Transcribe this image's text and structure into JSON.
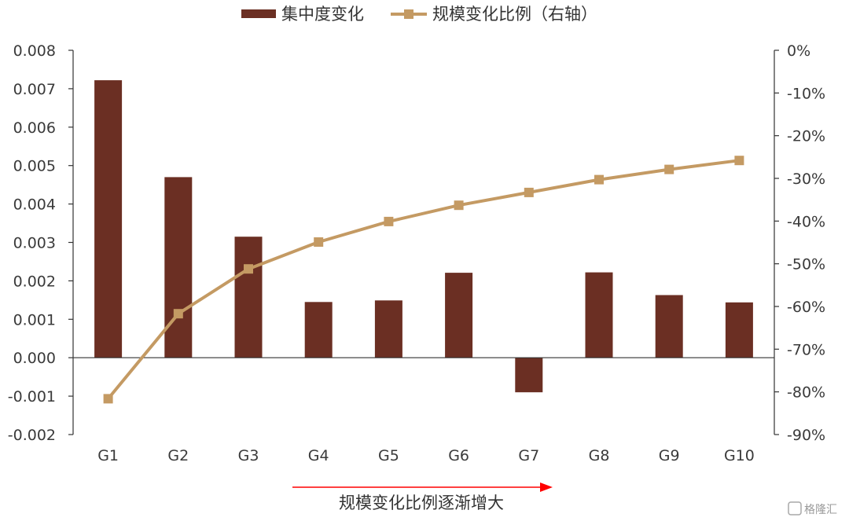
{
  "chart_data": {
    "type": "bar+line",
    "categories": [
      "G1",
      "G2",
      "G3",
      "G4",
      "G5",
      "G6",
      "G7",
      "G8",
      "G9",
      "G10"
    ],
    "series": [
      {
        "name": "集中度变化",
        "type": "bar",
        "axis": "left",
        "color": "#6b2f23",
        "values": [
          0.00722,
          0.0047,
          0.00315,
          0.00145,
          0.00149,
          0.00221,
          -0.0009,
          0.00222,
          0.00163,
          0.00144
        ]
      },
      {
        "name": "规模变化比例（右轴）",
        "type": "line",
        "axis": "right",
        "color": "#c49a63",
        "marker": "square",
        "values": [
          -0.816,
          -0.617,
          -0.512,
          -0.449,
          -0.401,
          -0.363,
          -0.333,
          -0.303,
          -0.279,
          -0.258
        ]
      }
    ],
    "y_left": {
      "range": [
        -0.002,
        0.008
      ],
      "ticks": [
        0.008,
        0.007,
        0.006,
        0.005,
        0.004,
        0.003,
        0.002,
        0.001,
        0.0,
        -0.001,
        -0.002
      ],
      "tick_labels": [
        "0.008",
        "0.007",
        "0.006",
        "0.005",
        "0.004",
        "0.003",
        "0.002",
        "0.001",
        "0.000",
        "-0.001",
        "-0.002"
      ]
    },
    "y_right": {
      "range": [
        -0.9,
        0.0
      ],
      "ticks": [
        0,
        -0.1,
        -0.2,
        -0.3,
        -0.4,
        -0.5,
        -0.6,
        -0.7,
        -0.8,
        -0.9
      ],
      "tick_labels": [
        "0%",
        "-10%",
        "-20%",
        "-30%",
        "-40%",
        "-50%",
        "-60%",
        "-70%",
        "-80%",
        "-90%"
      ]
    },
    "legend_position": "top-center",
    "grid": false
  },
  "annotation": {
    "text": "规模变化比例逐渐增大",
    "arrow_color": "#ff0000"
  },
  "watermark": {
    "text": "格隆汇"
  }
}
